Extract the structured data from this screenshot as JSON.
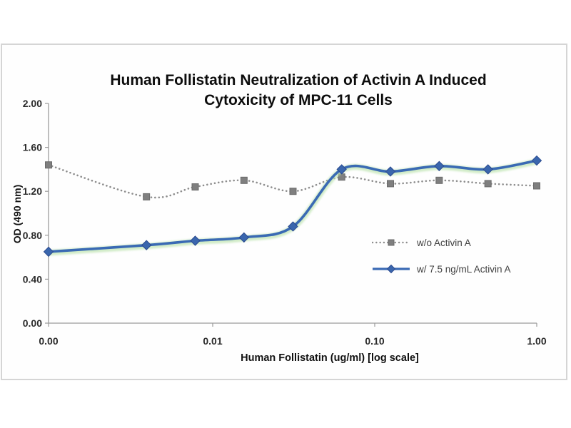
{
  "page": {
    "background": "#ffffff"
  },
  "chart_data": {
    "type": "line",
    "title": "Human Follistatin Neutralization of Activin A Induced Cytoxicity of MPC-11 Cells",
    "title_lines": [
      "Human Follistatin Neutralization of Activin A Induced",
      "Cytoxicity of MPC-11 Cells"
    ],
    "xlabel": "Human Follistatin (ug/ml) [log scale]",
    "ylabel": "OD (490 nm)",
    "x_scale": "log",
    "x": [
      0,
      0.0039,
      0.0078,
      0.0156,
      0.0313,
      0.0625,
      0.125,
      0.25,
      0.5,
      1
    ],
    "series": [
      {
        "name": "w/o Activin A",
        "values": [
          1.44,
          1.15,
          1.24,
          1.3,
          1.2,
          1.33,
          1.27,
          1.3,
          1.27,
          1.25
        ],
        "color": "#8d8d8d",
        "marker_color": "#7f7f7f",
        "marker_edge": "#6a6a6a",
        "line_style": "dotted",
        "marker": "square"
      },
      {
        "name": "w/ 7.5 ng/mL Activin A",
        "values": [
          0.65,
          0.71,
          0.75,
          0.78,
          0.88,
          1.4,
          1.38,
          1.43,
          1.4,
          1.48
        ],
        "color": "#3a6ab4",
        "marker_color": "#3a66ad",
        "marker_edge": "#2a4a8f",
        "glow_color": "#b9e2aa",
        "line_style": "solid",
        "marker": "diamond"
      }
    ],
    "ylim": [
      0,
      2
    ],
    "y_ticks": [
      0,
      0.4,
      0.8,
      1.2,
      1.6,
      2
    ],
    "y_tick_labels": [
      "0.00",
      "0.40",
      "0.80",
      "1.20",
      "1.60",
      "2.00"
    ],
    "x_ticks": [
      0,
      0.01,
      0.1,
      1
    ],
    "x_tick_labels": [
      "0.00",
      "0.01",
      "0.10",
      "1.00"
    ],
    "grid": false,
    "legend_position": "inside-right",
    "axis_color": "#9b9b9b",
    "tick_label_color": "#2b2b2b"
  }
}
